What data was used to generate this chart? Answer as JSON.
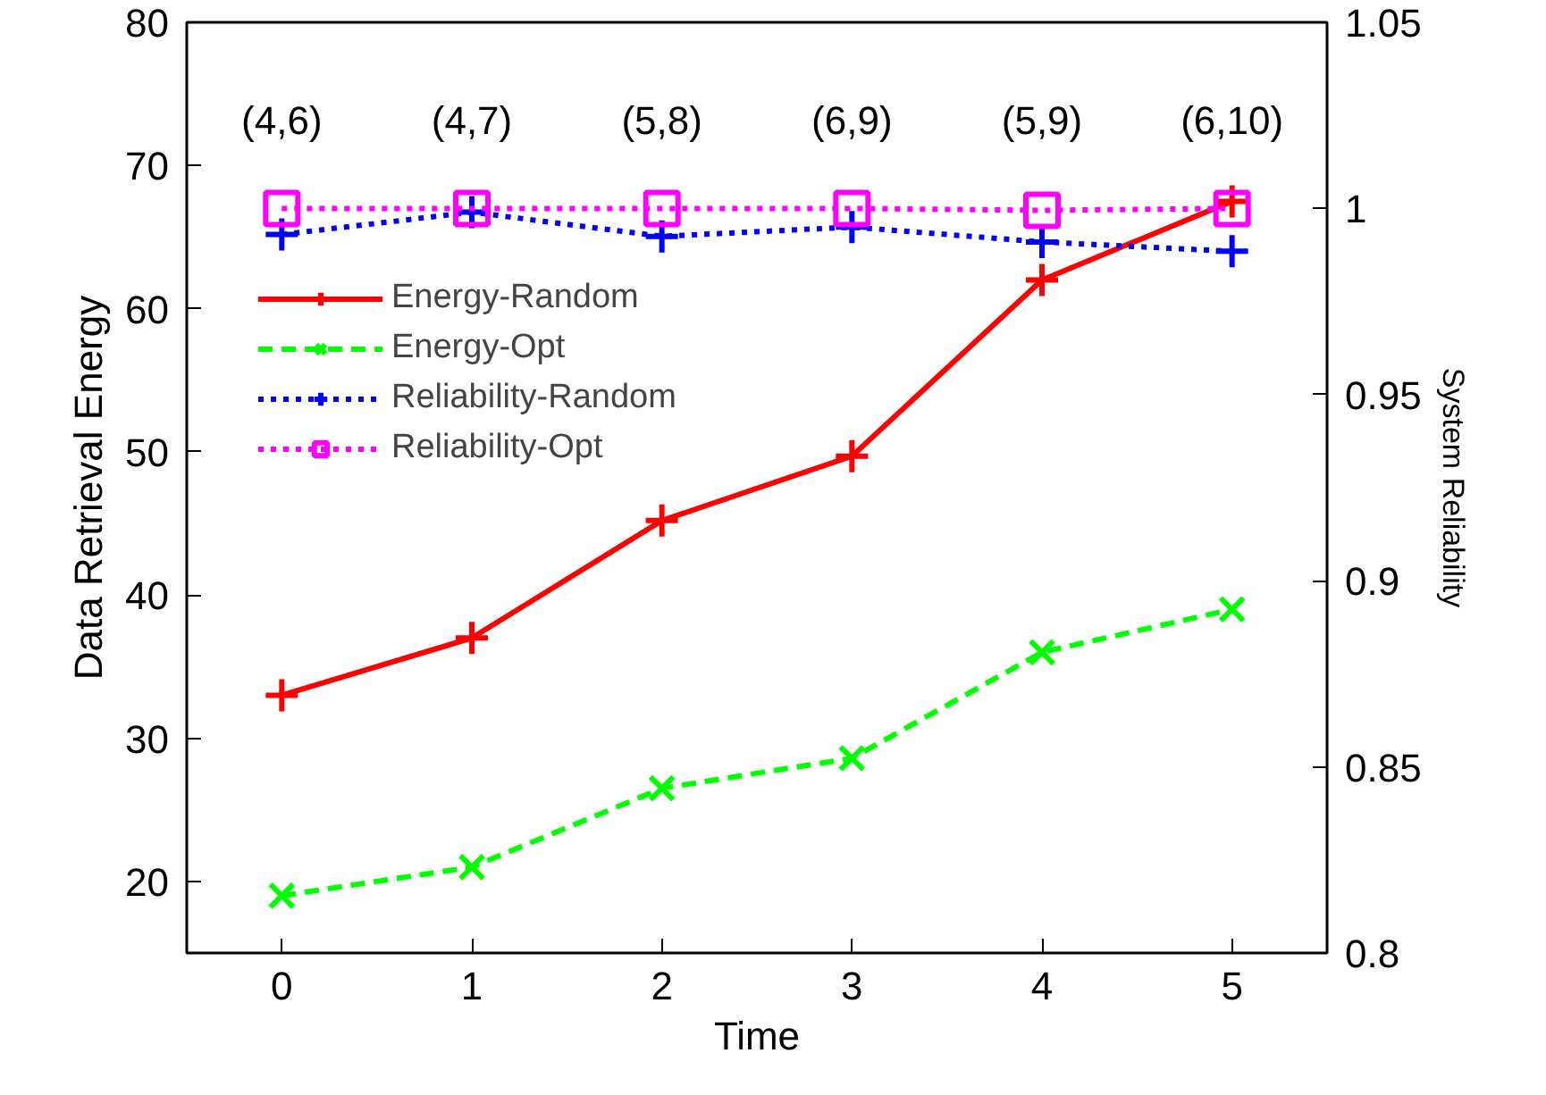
{
  "chart_data": {
    "type": "line",
    "xlabel": "Time",
    "ylabel": "Data Retrieval Energy",
    "y2label": "System Reliability",
    "x": [
      0,
      1,
      2,
      3,
      4,
      5
    ],
    "xlim": [
      -0.5,
      5.5
    ],
    "xticks": [
      0,
      1,
      2,
      3,
      4,
      5
    ],
    "ylim": [
      15,
      80
    ],
    "yticks": [
      20,
      30,
      40,
      50,
      60,
      70,
      80
    ],
    "y2lim": [
      0.8,
      1.05
    ],
    "y2ticks": [
      0.8,
      0.85,
      0.9,
      0.95,
      1,
      1.05
    ],
    "series": [
      {
        "name": "Energy-Random",
        "color": "#ff0000",
        "marker": "cross",
        "line_style": "solid",
        "values": [
          33,
          37,
          45.2,
          49.7,
          62,
          67.5
        ]
      },
      {
        "name": "Energy-Opt",
        "color": "#00ff00",
        "marker": "x",
        "line_style": "dashed",
        "values": [
          19,
          21,
          26.5,
          28.6,
          36,
          39
        ]
      },
      {
        "name": "Reliability-Random",
        "color": "#0000ff",
        "marker": "cross",
        "line_style": "dotted",
        "axis": "y2",
        "values": [
          0.993,
          0.999,
          0.9925,
          0.995,
          0.991,
          0.9885
        ]
      },
      {
        "name": "Reliability-Opt",
        "color": "#ff00ff",
        "marker": "square",
        "line_style": "dotted",
        "axis": "y2",
        "values": [
          1,
          1,
          1,
          1,
          0.9995,
          1
        ]
      }
    ],
    "annotations": [
      "(4,6)",
      "(4,7)",
      "(5,8)",
      "(6,9)",
      "(5,9)",
      "(6,10)"
    ],
    "legend": "top left",
    "grid": false
  }
}
